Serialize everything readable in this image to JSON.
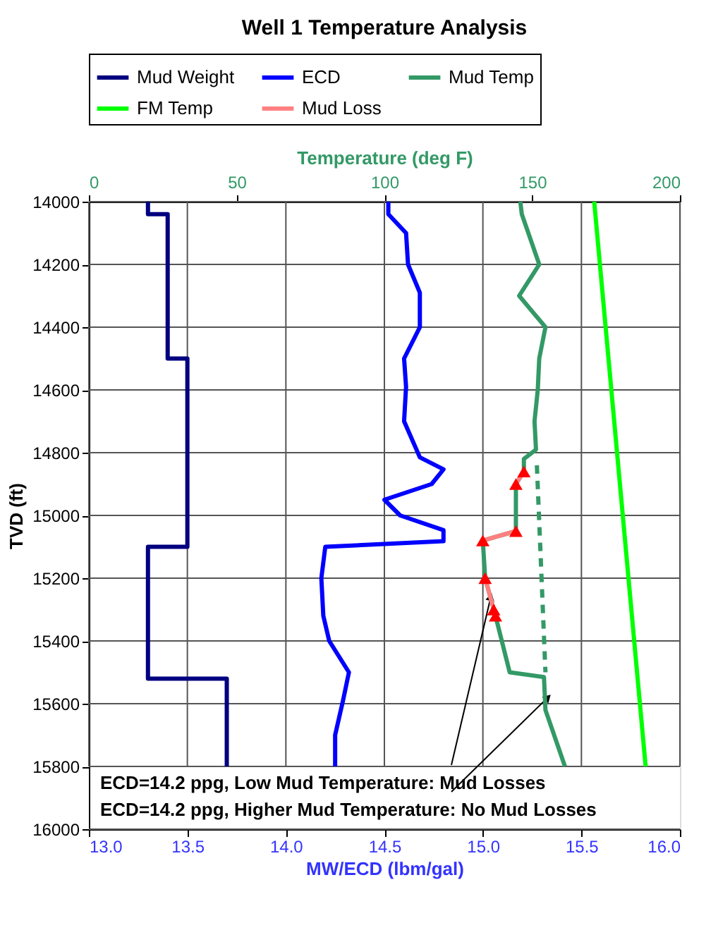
{
  "chart_data": {
    "type": "line",
    "title": "Well 1 Temperature Analysis",
    "xlabel": "MW/ECD (lbm/gal)",
    "ylabel": "TVD (ft)",
    "x2label": "Temperature (deg F)",
    "xlim": [
      13,
      16
    ],
    "xticks": [
      {
        "value": 13,
        "label": "13.0"
      },
      13.5,
      {
        "value": 14,
        "label": "14.0"
      },
      14.5,
      {
        "value": 15,
        "label": "15.0"
      },
      15.5,
      {
        "value": 16,
        "label": "16.0"
      }
    ],
    "x2lim": [
      0,
      200
    ],
    "x2ticks": [
      0,
      50,
      100,
      150,
      200
    ],
    "ylim": [
      16000,
      14000
    ],
    "yticks": [
      14000,
      14200,
      14400,
      14600,
      14800,
      15000,
      15200,
      15400,
      15600,
      15800,
      16000
    ],
    "grid": true,
    "legend": "top",
    "series": [
      {
        "name": "Mud Weight",
        "color": "#000080",
        "x": [
          13.3,
          13.3,
          13.4,
          13.4,
          13.5,
          13.5,
          13.3,
          13.3,
          13.7,
          13.7
        ],
        "values": [
          14000,
          14040,
          14040,
          14500,
          14500,
          15100,
          15100,
          15520,
          15520,
          15800
        ]
      },
      {
        "name": "ECD",
        "color": "#0000ff",
        "x": [
          14.52,
          14.52,
          14.61,
          14.62,
          14.68,
          14.68,
          14.6,
          14.61,
          14.6,
          14.68,
          14.8,
          14.74,
          14.5,
          14.58,
          14.8,
          14.8,
          14.2,
          14.18,
          14.19,
          14.22,
          14.32,
          14.29,
          14.25,
          14.25
        ],
        "values": [
          14000,
          14040,
          14100,
          14200,
          14290,
          14400,
          14500,
          14590,
          14700,
          14815,
          14853,
          14900,
          14950,
          15000,
          15047,
          15082,
          15100,
          15200,
          15320,
          15400,
          15500,
          15590,
          15700,
          15800
        ]
      },
      {
        "name": "Mud Temp",
        "axis": "x2",
        "color": "#339966",
        "x": [
          146,
          146.5,
          152.4,
          145.6,
          154.5,
          152.4,
          151.9,
          150.8,
          151.3,
          147.2,
          147.2,
          144.5,
          144.5,
          133.3,
          134.1,
          137,
          137.6,
          142.4,
          154,
          154.5,
          161.1
        ],
        "values": [
          14000,
          14040,
          14200,
          14300,
          14400,
          14500,
          14600,
          14700,
          14790,
          14820,
          14860,
          14900,
          15050,
          15080,
          15200,
          15300,
          15320,
          15500,
          15515,
          15620,
          15800
        ]
      },
      {
        "name": "FM Temp",
        "axis": "x2",
        "color": "#00ff00",
        "x": [
          171,
          188.4
        ],
        "values": [
          14000,
          15800
        ]
      },
      {
        "name": "Mud Loss",
        "axis": "x2",
        "marker": "triangle",
        "color": "#ff8080",
        "colors": [
          "#ff0000",
          "#ff0000",
          null,
          "#ff0000",
          "#ff0000",
          null,
          "#ff0000",
          "#ff0000",
          "#ff0000"
        ],
        "x": [
          147.2,
          144.5,
          null,
          144.5,
          133.3,
          null,
          134.1,
          137,
          137.6
        ],
        "values": [
          14860,
          14900,
          null,
          15050,
          15080,
          null,
          15200,
          15300,
          15320
        ]
      },
      {
        "axis": "x2",
        "line_style": "dashed",
        "color": "#339966",
        "x": [
          151.6,
          154.5
        ],
        "values": [
          14840,
          15500
        ]
      }
    ],
    "annotations": [
      {
        "text": "ECD=14.2 ppg, Low Mud Temperature:  Mud Losses",
        "x": 15.04,
        "y": 15260
      },
      {
        "text": "ECD=14.2 ppg, Higher Mud Temperature:  No Mud Losses",
        "x": 15.33,
        "y": 15580
      }
    ]
  }
}
